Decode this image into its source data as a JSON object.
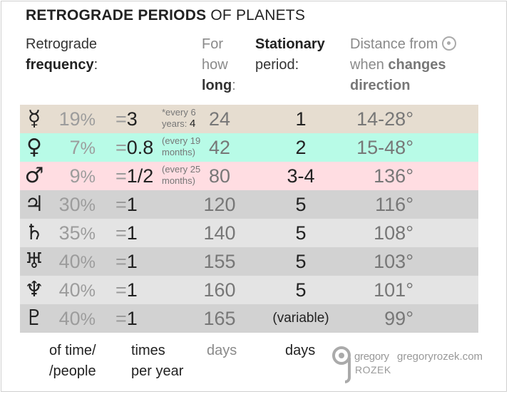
{
  "title": {
    "bold": "RETROGRADE PERIODS",
    "rest": "OF PLANETS"
  },
  "headers": {
    "frequency": {
      "line1": "Retrograde",
      "bold": "frequency",
      "colon": ":"
    },
    "long": {
      "line1": "For",
      "line2": "how",
      "bold": "long",
      "colon": ":"
    },
    "stationary": {
      "bold": "Stationary",
      "line2": "period:"
    },
    "distance": {
      "line1": "Distance from",
      "line2_pre": "when ",
      "line2_bold": "changes",
      "line3_bold": "direction"
    }
  },
  "rows": [
    {
      "planet": "Mercury",
      "symbol": "☿",
      "pct": "19",
      "times": "3",
      "note_l1": "*every 6",
      "note_l2": "years: ",
      "note_bold": "4",
      "long": "24",
      "stat": "1",
      "dist": "14-28°",
      "bg": "#e6ddd0"
    },
    {
      "planet": "Venus",
      "symbol": "♀",
      "pct": "7",
      "times": "0.8",
      "note_l1": "(every 19",
      "note_l2": "months)",
      "note_bold": "",
      "long": "42",
      "stat": "2",
      "dist": "15-48°",
      "bg": "#b8fbe7"
    },
    {
      "planet": "Mars",
      "symbol": "♂",
      "pct": "9",
      "times": "1/2",
      "note_l1": "(every 25",
      "note_l2": "months)",
      "note_bold": "",
      "long": "80",
      "stat": "3-4",
      "dist": "136°",
      "bg": "#ffdde2"
    },
    {
      "planet": "Jupiter",
      "symbol": "♃",
      "pct": "30",
      "times": "1",
      "note_l1": "",
      "note_l2": "",
      "note_bold": "",
      "long": "120",
      "stat": "5",
      "dist": "116°",
      "bg": "#d2d2d2"
    },
    {
      "planet": "Saturn",
      "symbol": "♄",
      "pct": "35",
      "times": "1",
      "note_l1": "",
      "note_l2": "",
      "note_bold": "",
      "long": "140",
      "stat": "5",
      "dist": "108°",
      "bg": "#e4e4e4"
    },
    {
      "planet": "Uranus",
      "symbol": "♅",
      "pct": "40",
      "times": "1",
      "note_l1": "",
      "note_l2": "",
      "note_bold": "",
      "long": "155",
      "stat": "5",
      "dist": "103°",
      "bg": "#d2d2d2"
    },
    {
      "planet": "Neptune",
      "symbol": "♆",
      "pct": "40",
      "times": "1",
      "note_l1": "",
      "note_l2": "",
      "note_bold": "",
      "long": "160",
      "stat": "5",
      "dist": "101°",
      "bg": "#e4e4e4"
    },
    {
      "planet": "Pluto",
      "symbol": "♇",
      "pct": "40",
      "times": "1",
      "note_l1": "",
      "note_l2": "",
      "note_bold": "",
      "long": "165",
      "stat": "(variable)",
      "dist": "99°",
      "bg": "#d2d2d2"
    }
  ],
  "pct_sign": "%",
  "eq_sign": "=",
  "footer": {
    "pct_l1": "of time/",
    "pct_l2": "/people",
    "times_l1": "times",
    "times_l2": "per year",
    "long": "days",
    "stat": "days"
  },
  "logo": {
    "name1": "gregory",
    "name2": "ROZEK",
    "site": "gregoryrozek.com"
  },
  "colors": {
    "sun_icon": "#aaaaaa",
    "muted_text": "#9c9c9c"
  }
}
